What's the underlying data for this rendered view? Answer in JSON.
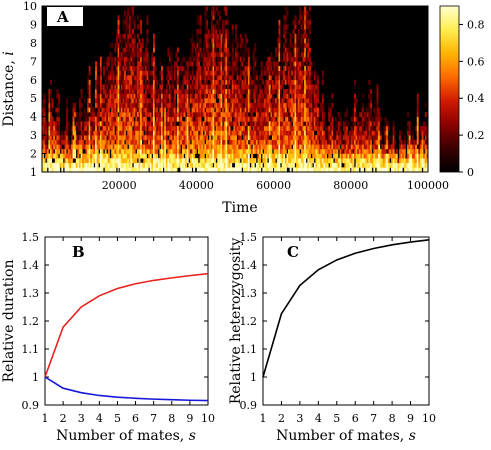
{
  "chart_data": [
    {
      "panel": "A",
      "type": "heatmap",
      "xlabel": "Time",
      "ylabel": "Distance, i",
      "xlim": [
        0,
        100000
      ],
      "ylim": [
        1,
        10
      ],
      "xticks": [
        "20000",
        "40000",
        "60000",
        "80000",
        "100000"
      ],
      "xtick_values": [
        20000,
        40000,
        60000,
        80000,
        100000
      ],
      "yticks": [
        "1",
        "2",
        "3",
        "4",
        "5",
        "6",
        "7",
        "8",
        "9",
        "10"
      ],
      "colorbar": {
        "range": [
          0,
          0.9
        ],
        "ticks": [
          "0",
          "0.2",
          "0.4",
          "0.6",
          "0.8"
        ],
        "tick_values": [
          0,
          0.2,
          0.4,
          0.6,
          0.8
        ],
        "colors": [
          "#000000",
          "#3a0000",
          "#8b0000",
          "#d01a00",
          "#ff6a00",
          "#ffb400",
          "#ffee50",
          "#ffffd0"
        ]
      },
      "reach_profile": [
        [
          0,
          4.0
        ],
        [
          3000,
          5.2
        ],
        [
          6000,
          3.6
        ],
        [
          9000,
          4.6
        ],
        [
          12000,
          5.6
        ],
        [
          15000,
          6.6
        ],
        [
          18000,
          7.6
        ],
        [
          21000,
          9.6
        ],
        [
          23000,
          10
        ],
        [
          25000,
          9.0
        ],
        [
          28000,
          7.6
        ],
        [
          31000,
          6.6
        ],
        [
          34000,
          7.6
        ],
        [
          37000,
          7.3
        ],
        [
          40000,
          8.6
        ],
        [
          43000,
          9.6
        ],
        [
          45000,
          10
        ],
        [
          47000,
          9.2
        ],
        [
          50000,
          8.4
        ],
        [
          53000,
          7.6
        ],
        [
          56000,
          6.5
        ],
        [
          59000,
          7.2
        ],
        [
          62000,
          8.6
        ],
        [
          65000,
          9.5
        ],
        [
          67000,
          10
        ],
        [
          70000,
          8.0
        ],
        [
          72000,
          5.6
        ],
        [
          75000,
          4.2
        ],
        [
          78000,
          3.6
        ],
        [
          81000,
          4.6
        ],
        [
          84000,
          5.2
        ],
        [
          87000,
          4.3
        ],
        [
          90000,
          3.4
        ],
        [
          93000,
          3.2
        ],
        [
          96000,
          3.6
        ],
        [
          100000,
          4.6
        ]
      ],
      "bright_bands": [
        {
          "x": 22500,
          "y_top": 10
        },
        {
          "x": 44500,
          "y_top": 10
        },
        {
          "x": 52000,
          "y_top": 8.6
        },
        {
          "x": 68500,
          "y_top": 10
        }
      ]
    },
    {
      "panel": "B",
      "type": "line",
      "xlabel": "Number of mates, s",
      "ylabel": "Relative duration",
      "xlim": [
        1,
        10
      ],
      "ylim": [
        0.9,
        1.5
      ],
      "xticks": [
        "1",
        "2",
        "3",
        "4",
        "5",
        "6",
        "7",
        "8",
        "9",
        "10"
      ],
      "yticks": [
        "0.9",
        "1",
        "1.1",
        "1.2",
        "1.3",
        "1.4",
        "1.5"
      ],
      "x": [
        1,
        2,
        3,
        4,
        5,
        6,
        7,
        8,
        9,
        10
      ],
      "series": [
        {
          "color": "#e8221e",
          "values": [
            1.0,
            1.178,
            1.25,
            1.29,
            1.316,
            1.333,
            1.345,
            1.354,
            1.362,
            1.369
          ]
        },
        {
          "color": "#1818d8",
          "values": [
            1.0,
            0.96,
            0.944,
            0.934,
            0.928,
            0.924,
            0.921,
            0.919,
            0.917,
            0.916
          ]
        }
      ]
    },
    {
      "panel": "C",
      "type": "line",
      "xlabel": "Number of mates, s",
      "ylabel": "Relative heterozygosity",
      "xlim": [
        1,
        10
      ],
      "ylim": [
        0.9,
        1.5
      ],
      "xticks": [
        "1",
        "2",
        "3",
        "4",
        "5",
        "6",
        "7",
        "8",
        "9",
        "10"
      ],
      "yticks": [
        "0.9",
        "1",
        "1.1",
        "1.2",
        "1.3",
        "1.4",
        "1.5"
      ],
      "x": [
        1,
        2,
        3,
        4,
        5,
        6,
        7,
        8,
        9,
        10
      ],
      "series": [
        {
          "color": "#000000",
          "values": [
            1.0,
            1.226,
            1.327,
            1.383,
            1.418,
            1.442,
            1.459,
            1.472,
            1.482,
            1.49
          ]
        }
      ]
    }
  ]
}
